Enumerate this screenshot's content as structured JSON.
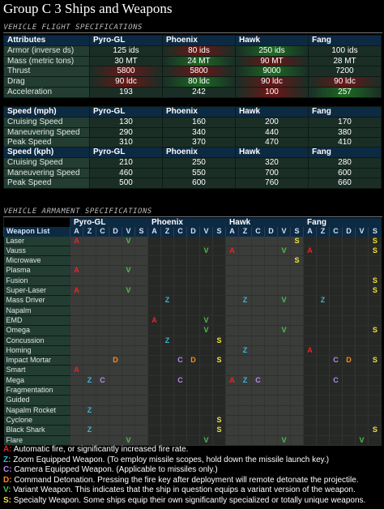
{
  "title": "Group C 3 Ships and Weapons",
  "flight_section": "VEHICLE FLIGHT SPECIFICATIONS",
  "armament_section": "VEHICLE ARMAMENT SPECIFICATIONS",
  "ships": [
    "Pyro-GL",
    "Phoenix",
    "Hawk",
    "Fang"
  ],
  "attributes": {
    "header": "Attributes",
    "rows": [
      {
        "label": "Armor (inverse ds)",
        "values": [
          "125 ids",
          "80 ids",
          "250 ids",
          "100 ids"
        ],
        "shade": [
          "",
          "red",
          "grn",
          ""
        ]
      },
      {
        "label": "Mass (metric tons)",
        "values": [
          "30 MT",
          "24 MT",
          "90 MT",
          "28 MT"
        ],
        "shade": [
          "",
          "grn",
          "red",
          ""
        ]
      },
      {
        "label": "Thrust",
        "values": [
          "5800",
          "5800",
          "9000",
          "7200"
        ],
        "shade": [
          "red",
          "red",
          "grn",
          ""
        ]
      },
      {
        "label": "Drag",
        "values": [
          "90 ldc",
          "80 ldc",
          "90 ldc",
          "90 ldc"
        ],
        "shade": [
          "red",
          "grn",
          "red",
          "red"
        ]
      },
      {
        "label": "Acceleration",
        "values": [
          "193",
          "242",
          "100",
          "257"
        ],
        "shade": [
          "",
          "",
          "red",
          "grn"
        ]
      }
    ]
  },
  "speed_mph": {
    "header": "Speed (mph)",
    "rows": [
      {
        "label": "Cruising Speed",
        "values": [
          "130",
          "160",
          "200",
          "170"
        ]
      },
      {
        "label": "Maneuvering Speed",
        "values": [
          "290",
          "340",
          "440",
          "380"
        ]
      },
      {
        "label": "Peak Speed",
        "values": [
          "310",
          "370",
          "470",
          "410"
        ]
      }
    ]
  },
  "speed_kph": {
    "header": "Speed (kph)",
    "rows": [
      {
        "label": "Cruising Speed",
        "values": [
          "210",
          "250",
          "320",
          "280"
        ]
      },
      {
        "label": "Maneuvering Speed",
        "values": [
          "460",
          "550",
          "700",
          "600"
        ]
      },
      {
        "label": "Peak Speed",
        "values": [
          "500",
          "600",
          "760",
          "660"
        ]
      }
    ]
  },
  "armament": {
    "weapon_list_label": "Weapon List",
    "letters": [
      "A",
      "Z",
      "C",
      "D",
      "V",
      "S"
    ],
    "weapons": [
      {
        "name": "Laser",
        "marks": [
          "A",
          "",
          "",
          "",
          "V",
          "",
          "",
          "",
          "",
          "",
          "",
          "",
          "",
          "",
          "",
          "",
          "",
          "S",
          "",
          "",
          "",
          "",
          "",
          "S"
        ]
      },
      {
        "name": "Vauss",
        "marks": [
          "",
          "",
          "",
          "",
          "",
          "",
          "",
          "",
          "",
          "",
          "V",
          "",
          "A",
          "",
          "",
          "",
          "V",
          "",
          "A",
          "",
          "",
          "",
          "",
          "S"
        ]
      },
      {
        "name": "Microwave",
        "marks": [
          "",
          "",
          "",
          "",
          "",
          "",
          "",
          "",
          "",
          "",
          "",
          "",
          "",
          "",
          "",
          "",
          "",
          "S",
          "",
          "",
          "",
          "",
          "",
          ""
        ]
      },
      {
        "name": "Plasma",
        "marks": [
          "A",
          "",
          "",
          "",
          "V",
          "",
          "",
          "",
          "",
          "",
          "",
          "",
          "",
          "",
          "",
          "",
          "",
          "",
          "",
          "",
          "",
          "",
          "",
          ""
        ]
      },
      {
        "name": "Fusion",
        "marks": [
          "",
          "",
          "",
          "",
          "",
          "",
          "",
          "",
          "",
          "",
          "",
          "",
          "",
          "",
          "",
          "",
          "",
          "",
          "",
          "",
          "",
          "",
          "",
          "S"
        ]
      },
      {
        "name": "Super-Laser",
        "marks": [
          "A",
          "",
          "",
          "",
          "V",
          "",
          "",
          "",
          "",
          "",
          "",
          "",
          "",
          "",
          "",
          "",
          "",
          "",
          "",
          "",
          "",
          "",
          "",
          "S"
        ]
      },
      {
        "name": "Mass Driver",
        "marks": [
          "",
          "",
          "",
          "",
          "",
          "",
          "",
          "Z",
          "",
          "",
          "",
          "",
          "",
          "Z",
          "",
          "",
          "V",
          "",
          "",
          "Z",
          "",
          "",
          "",
          ""
        ]
      },
      {
        "name": "Napalm",
        "marks": [
          "",
          "",
          "",
          "",
          "",
          "",
          "",
          "",
          "",
          "",
          "",
          "",
          "",
          "",
          "",
          "",
          "",
          "",
          "",
          "",
          "",
          "",
          "",
          ""
        ]
      },
      {
        "name": "EMD",
        "marks": [
          "",
          "",
          "",
          "",
          "",
          "",
          "A",
          "",
          "",
          "",
          "V",
          "",
          "",
          "",
          "",
          "",
          "",
          "",
          "",
          "",
          "",
          "",
          "",
          ""
        ]
      },
      {
        "name": "Omega",
        "marks": [
          "",
          "",
          "",
          "",
          "",
          "",
          "",
          "",
          "",
          "",
          "V",
          "",
          "",
          "",
          "",
          "",
          "V",
          "",
          "",
          "",
          "",
          "",
          "",
          "S"
        ]
      },
      {
        "name": "Concussion",
        "marks": [
          "",
          "",
          "",
          "",
          "",
          "",
          "",
          "Z",
          "",
          "",
          "",
          "S",
          "",
          "",
          "",
          "",
          "",
          "",
          "",
          "",
          "",
          "",
          "",
          ""
        ]
      },
      {
        "name": "Homing",
        "marks": [
          "",
          "",
          "",
          "",
          "",
          "",
          "",
          "",
          "",
          "",
          "",
          "",
          "",
          "Z",
          "",
          "",
          "",
          "",
          "A",
          "",
          "",
          "",
          "",
          ""
        ]
      },
      {
        "name": "Impact Mortar",
        "marks": [
          "",
          "",
          "",
          "D",
          "",
          "",
          "",
          "",
          "C",
          "D",
          "",
          "S",
          "",
          "",
          "",
          "",
          "",
          "",
          "",
          "",
          "C",
          "D",
          "",
          "S"
        ]
      },
      {
        "name": "Smart",
        "marks": [
          "A",
          "",
          "",
          "",
          "",
          "",
          "",
          "",
          "",
          "",
          "",
          "",
          "",
          "",
          "",
          "",
          "",
          "",
          "",
          "",
          "",
          "",
          "",
          ""
        ]
      },
      {
        "name": "Mega",
        "marks": [
          "",
          "Z",
          "C",
          "",
          "",
          "",
          "",
          "",
          "C",
          "",
          "",
          "",
          "A",
          "Z",
          "C",
          "",
          "",
          "",
          "",
          "",
          "C",
          "",
          "",
          ""
        ]
      },
      {
        "name": "Fragmentation",
        "marks": [
          "",
          "",
          "",
          "",
          "",
          "",
          "",
          "",
          "",
          "",
          "",
          "",
          "",
          "",
          "",
          "",
          "",
          "",
          "",
          "",
          "",
          "",
          "",
          ""
        ]
      },
      {
        "name": "Guided",
        "marks": [
          "",
          "",
          "",
          "",
          "",
          "",
          "",
          "",
          "",
          "",
          "",
          "",
          "",
          "",
          "",
          "",
          "",
          "",
          "",
          "",
          "",
          "",
          "",
          ""
        ]
      },
      {
        "name": "Napalm Rocket",
        "marks": [
          "",
          "Z",
          "",
          "",
          "",
          "",
          "",
          "",
          "",
          "",
          "",
          "",
          "",
          "",
          "",
          "",
          "",
          "",
          "",
          "",
          "",
          "",
          "",
          ""
        ]
      },
      {
        "name": "Cyclone",
        "marks": [
          "",
          "",
          "",
          "",
          "",
          "",
          "",
          "",
          "",
          "",
          "",
          "S",
          "",
          "",
          "",
          "",
          "",
          "",
          "",
          "",
          "",
          "",
          "",
          ""
        ]
      },
      {
        "name": "Black Shark",
        "marks": [
          "",
          "Z",
          "",
          "",
          "",
          "",
          "",
          "",
          "",
          "",
          "",
          "S",
          "",
          "",
          "",
          "",
          "",
          "",
          "",
          "",
          "",
          "",
          "",
          "S"
        ]
      },
      {
        "name": "Flare",
        "marks": [
          "",
          "",
          "",
          "",
          "V",
          "",
          "",
          "",
          "",
          "",
          "V",
          "",
          "",
          "",
          "",
          "",
          "V",
          "",
          "",
          "",
          "",
          "",
          "V",
          ""
        ]
      }
    ]
  },
  "legend": [
    {
      "key": "A",
      "text": "Automatic fire, or significantly increased fire rate."
    },
    {
      "key": "Z",
      "text": "Zoom Equipped Weapon. (To employ missile scopes, hold down the missile launch key.)"
    },
    {
      "key": "C",
      "text": "Camera Equipped Weapon. (Applicable to missiles only.)"
    },
    {
      "key": "D",
      "text": "Command Detonation. Pressing the fire key after deployment will remote detonate the projectile."
    },
    {
      "key": "V",
      "text": "Variant Weapon. This indicates that the ship in question equips a variant version of the weapon."
    },
    {
      "key": "S",
      "text": "Specialty Weapon. Some ships equip their own significantly specialized or totally unique weapons."
    }
  ]
}
